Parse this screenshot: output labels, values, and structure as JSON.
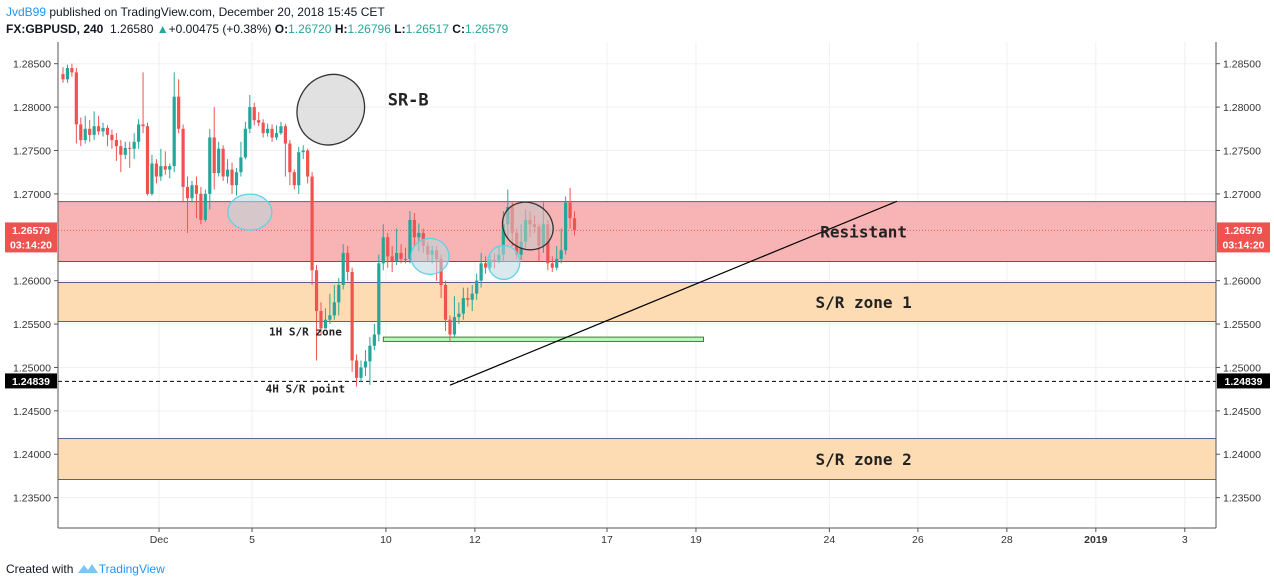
{
  "header": {
    "user": "JvdB99",
    "published": "published on TradingView.com, December 20, 2018 15:45 CET",
    "symbol": "FX:GBPUSD, 240",
    "last": "1.26580",
    "arrow": "▲",
    "change": "+0.00475 (+0.38%)",
    "o_label": "O:",
    "o_val": "1.26720",
    "h_label": "H:",
    "h_val": "1.26796",
    "l_label": "L:",
    "l_val": "1.26517",
    "c_label": "C:",
    "c_val": "1.26579"
  },
  "footer": {
    "created": "Created with",
    "brand": "TradingView"
  },
  "colors": {
    "up": "#26a69a",
    "down": "#ef5350",
    "resist": "#f8b4b4",
    "zone": "#fddcb4",
    "line1h": "#b7f5b9"
  },
  "chart_data": {
    "type": "candlestick",
    "symbol": "FX:GBPUSD",
    "timeframe": "240",
    "ylim": [
      1.2315,
      1.2875
    ],
    "y_ticks": [
      "1.28500",
      "1.28000",
      "1.27500",
      "1.27000",
      "1.26000",
      "1.25500",
      "1.25000",
      "1.24500",
      "1.24000",
      "1.23500"
    ],
    "x_ticks": [
      {
        "label": "Dec",
        "slot": 21.6,
        "bold": false
      },
      {
        "label": "5",
        "slot": 42.5,
        "bold": false
      },
      {
        "label": "10",
        "slot": 72.6,
        "bold": false
      },
      {
        "label": "12",
        "slot": 92.6,
        "bold": false
      },
      {
        "label": "17",
        "slot": 122.3,
        "bold": false
      },
      {
        "label": "19",
        "slot": 142.3,
        "bold": false
      },
      {
        "label": "24",
        "slot": 172.3,
        "bold": false
      },
      {
        "label": "26",
        "slot": 192.2,
        "bold": false
      },
      {
        "label": "28",
        "slot": 212.2,
        "bold": false
      },
      {
        "label": "2019",
        "slot": 232.2,
        "bold": true
      },
      {
        "label": "3",
        "slot": 252.2,
        "bold": false
      }
    ],
    "price_labels": [
      {
        "value": 1.26579,
        "text": "1.26579",
        "sub": "03:14:20",
        "color": "#ef5350"
      },
      {
        "value": 1.24839,
        "text": "1.24839",
        "sub": "",
        "color": "#000000"
      }
    ],
    "candles": [
      [
        1.2838,
        1.2832,
        1.2846,
        1.2828
      ],
      [
        1.2832,
        1.2845,
        1.2849,
        1.2828
      ],
      [
        1.2845,
        1.284,
        1.285,
        1.2835
      ],
      [
        1.284,
        1.278,
        1.2845,
        1.2758
      ],
      [
        1.278,
        1.2762,
        1.2788,
        1.2755
      ],
      [
        1.2762,
        1.2775,
        1.279,
        1.2758
      ],
      [
        1.2775,
        1.2768,
        1.2785,
        1.276
      ],
      [
        1.2768,
        1.2778,
        1.2795,
        1.2762
      ],
      [
        1.2778,
        1.2772,
        1.279,
        1.2768
      ],
      [
        1.2772,
        1.2776,
        1.2782,
        1.2766
      ],
      [
        1.2776,
        1.2768,
        1.2779,
        1.2755
      ],
      [
        1.2768,
        1.2762,
        1.2774,
        1.2752
      ],
      [
        1.2762,
        1.2755,
        1.277,
        1.2738
      ],
      [
        1.2755,
        1.2745,
        1.2762,
        1.2725
      ],
      [
        1.2745,
        1.2753,
        1.276,
        1.274
      ],
      [
        1.2753,
        1.2752,
        1.276,
        1.273
      ],
      [
        1.2752,
        1.276,
        1.277,
        1.274
      ],
      [
        1.276,
        1.278,
        1.2786,
        1.2752
      ],
      [
        1.278,
        1.2778,
        1.284,
        1.277
      ],
      [
        1.2778,
        1.27,
        1.2782,
        1.2698
      ],
      [
        1.27,
        1.2735,
        1.2745,
        1.2698
      ],
      [
        1.2735,
        1.272,
        1.274,
        1.2712
      ],
      [
        1.272,
        1.2732,
        1.2752,
        1.2715
      ],
      [
        1.2732,
        1.2728,
        1.2749,
        1.2722
      ],
      [
        1.2728,
        1.2732,
        1.2735,
        1.2718
      ],
      [
        1.2732,
        1.2812,
        1.284,
        1.2725
      ],
      [
        1.2812,
        1.2775,
        1.2832,
        1.277
      ],
      [
        1.2775,
        1.2708,
        1.278,
        1.269
      ],
      [
        1.2708,
        1.2695,
        1.272,
        1.2655
      ],
      [
        1.2695,
        1.271,
        1.2715,
        1.269
      ],
      [
        1.271,
        1.27,
        1.272,
        1.2672
      ],
      [
        1.27,
        1.267,
        1.2708,
        1.2665
      ],
      [
        1.267,
        1.27,
        1.2705,
        1.2668
      ],
      [
        1.27,
        1.2765,
        1.2775,
        1.2682
      ],
      [
        1.2765,
        1.2724,
        1.28,
        1.2705
      ],
      [
        1.2724,
        1.2752,
        1.276,
        1.272
      ],
      [
        1.2752,
        1.272,
        1.2756,
        1.2715
      ],
      [
        1.272,
        1.2728,
        1.274,
        1.2712
      ],
      [
        1.2728,
        1.271,
        1.2736,
        1.27
      ],
      [
        1.271,
        1.2725,
        1.273,
        1.2698
      ],
      [
        1.2725,
        1.2742,
        1.276,
        1.272
      ],
      [
        1.2742,
        1.2775,
        1.2783,
        1.274
      ],
      [
        1.2775,
        1.28,
        1.2814,
        1.277
      ],
      [
        1.28,
        1.2785,
        1.2805,
        1.2779
      ],
      [
        1.2785,
        1.2782,
        1.2794,
        1.2778
      ],
      [
        1.2782,
        1.277,
        1.2786,
        1.2765
      ],
      [
        1.277,
        1.2775,
        1.2781,
        1.2766
      ],
      [
        1.2775,
        1.2765,
        1.278,
        1.276
      ],
      [
        1.2765,
        1.277,
        1.2779,
        1.2762
      ],
      [
        1.277,
        1.2778,
        1.2783,
        1.2768
      ],
      [
        1.2778,
        1.2758,
        1.2781,
        1.272
      ],
      [
        1.2758,
        1.2725,
        1.2762,
        1.271
      ],
      [
        1.2725,
        1.271,
        1.2728,
        1.2705
      ],
      [
        1.271,
        1.2748,
        1.2754,
        1.27
      ],
      [
        1.2748,
        1.275,
        1.2756,
        1.274
      ],
      [
        1.275,
        1.272,
        1.2752,
        1.2712
      ],
      [
        1.272,
        1.2612,
        1.2725,
        1.2595
      ],
      [
        1.2612,
        1.2565,
        1.2618,
        1.2508
      ],
      [
        1.2565,
        1.2545,
        1.2575,
        1.2537
      ],
      [
        1.2545,
        1.2555,
        1.2568,
        1.2545
      ],
      [
        1.2555,
        1.256,
        1.2585,
        1.255
      ],
      [
        1.256,
        1.2575,
        1.2595,
        1.2555
      ],
      [
        1.2575,
        1.2595,
        1.2603,
        1.256
      ],
      [
        1.2595,
        1.2632,
        1.2642,
        1.259
      ],
      [
        1.2632,
        1.261,
        1.264,
        1.26
      ],
      [
        1.261,
        1.2508,
        1.2615,
        1.2495
      ],
      [
        1.2508,
        1.2488,
        1.2515,
        1.2478
      ],
      [
        1.2488,
        1.25,
        1.2508,
        1.2483
      ],
      [
        1.25,
        1.2507,
        1.252,
        1.249
      ],
      [
        1.2507,
        1.2525,
        1.2535,
        1.248
      ],
      [
        1.2525,
        1.2538,
        1.255,
        1.252
      ],
      [
        1.2538,
        1.262,
        1.263,
        1.253
      ],
      [
        1.262,
        1.265,
        1.2665,
        1.2612
      ],
      [
        1.265,
        1.2628,
        1.2655,
        1.2615
      ],
      [
        1.2628,
        1.2622,
        1.264,
        1.261
      ],
      [
        1.2622,
        1.2632,
        1.266,
        1.2618
      ],
      [
        1.2632,
        1.2625,
        1.2642,
        1.262
      ],
      [
        1.2625,
        1.2625,
        1.2638,
        1.262
      ],
      [
        1.2625,
        1.267,
        1.268,
        1.262
      ],
      [
        1.267,
        1.265,
        1.2678,
        1.264
      ],
      [
        1.265,
        1.2655,
        1.2666,
        1.2634
      ],
      [
        1.2655,
        1.264,
        1.266,
        1.2632
      ],
      [
        1.264,
        1.263,
        1.2645,
        1.2622
      ],
      [
        1.263,
        1.2635,
        1.264,
        1.262
      ],
      [
        1.2635,
        1.2625,
        1.264,
        1.26
      ],
      [
        1.2625,
        1.2595,
        1.263,
        1.258
      ],
      [
        1.2595,
        1.2555,
        1.26,
        1.2542
      ],
      [
        1.2555,
        1.2538,
        1.256,
        1.253
      ],
      [
        1.2538,
        1.2558,
        1.2582,
        1.2535
      ],
      [
        1.2558,
        1.2562,
        1.2575,
        1.255
      ],
      [
        1.2562,
        1.258,
        1.2592,
        1.2555
      ],
      [
        1.258,
        1.2578,
        1.2592,
        1.257
      ],
      [
        1.2578,
        1.2585,
        1.2595,
        1.2565
      ],
      [
        1.2585,
        1.26,
        1.2608,
        1.2578
      ],
      [
        1.26,
        1.262,
        1.2632,
        1.2592
      ],
      [
        1.262,
        1.2615,
        1.2628,
        1.2608
      ],
      [
        1.2615,
        1.2624,
        1.263,
        1.261
      ],
      [
        1.2624,
        1.2623,
        1.2632,
        1.2614
      ],
      [
        1.2623,
        1.263,
        1.264,
        1.262
      ],
      [
        1.263,
        1.2665,
        1.268,
        1.2622
      ],
      [
        1.2665,
        1.2685,
        1.2705,
        1.2648
      ],
      [
        1.2685,
        1.2655,
        1.269,
        1.264
      ],
      [
        1.2655,
        1.263,
        1.266,
        1.2625
      ],
      [
        1.263,
        1.2645,
        1.2665,
        1.2624
      ],
      [
        1.2645,
        1.267,
        1.2682,
        1.2638
      ],
      [
        1.267,
        1.2665,
        1.268,
        1.265
      ],
      [
        1.2665,
        1.2662,
        1.2675,
        1.2655
      ],
      [
        1.2662,
        1.264,
        1.2666,
        1.2622
      ],
      [
        1.264,
        1.2665,
        1.269,
        1.2632
      ],
      [
        1.2665,
        1.262,
        1.267,
        1.2612
      ],
      [
        1.262,
        1.2615,
        1.2628,
        1.261
      ],
      [
        1.2615,
        1.2625,
        1.264,
        1.2612
      ],
      [
        1.2625,
        1.2635,
        1.266,
        1.262
      ],
      [
        1.2635,
        1.269,
        1.2697,
        1.263
      ],
      [
        1.269,
        1.2672,
        1.2707,
        1.266
      ],
      [
        1.2672,
        1.2658,
        1.268,
        1.2652
      ]
    ],
    "zones": [
      {
        "name": "Resistant",
        "top": 1.2691,
        "bottom": 1.2622,
        "fill": "#f8b4b4",
        "label_slot": 180
      },
      {
        "name": "S/R zone 1",
        "top": 1.2598,
        "bottom": 1.2553,
        "fill": "#fddcb4",
        "label_slot": 180
      },
      {
        "name": "S/R zone 2",
        "top": 1.2418,
        "bottom": 1.2371,
        "fill": "#fddcb4",
        "label_slot": 180
      }
    ],
    "hlines": [
      {
        "name": "1H S/R zone",
        "top": 1.2535,
        "bottom": 1.253,
        "x1_slot": 72,
        "x2_slot": 144,
        "label_slot": 54.5,
        "label_value": 1.2537
      }
    ],
    "levels": [
      {
        "name": "4H S/R point",
        "value": 1.24839,
        "label_slot": 54.5,
        "label_value": 1.2471
      }
    ],
    "trendline": {
      "slot1": 87.0,
      "value1": 1.24795,
      "slot2": 187.5,
      "value2": 1.26915
    },
    "ellipses": [
      {
        "slot": 60.2,
        "value": 1.2797,
        "rx": 33,
        "ry": 36,
        "rot": 30,
        "fill": "#c8c8c8",
        "stroke": "#333333"
      },
      {
        "slot": 104.5,
        "value": 1.2663,
        "rx": 26,
        "ry": 23,
        "rot": 30,
        "fill": "#c8c8c8",
        "stroke": "#333333"
      },
      {
        "slot": 42.0,
        "value": 1.2679,
        "rx": 22,
        "ry": 18,
        "rot": 0,
        "fill": "#b9d7df",
        "stroke": "#5ad4e6"
      },
      {
        "slot": 82.5,
        "value": 1.2628,
        "rx": 19,
        "ry": 18,
        "rot": 0,
        "fill": "#b9d7df",
        "stroke": "#5ad4e6"
      },
      {
        "slot": 99.1,
        "value": 1.2621,
        "rx": 16,
        "ry": 17,
        "rot": 0,
        "fill": "#b9d7df",
        "stroke": "#5ad4e6"
      }
    ],
    "text_annotations": [
      {
        "text": "SR-B",
        "slot": 73,
        "value": 1.2802,
        "size": 17
      }
    ]
  }
}
